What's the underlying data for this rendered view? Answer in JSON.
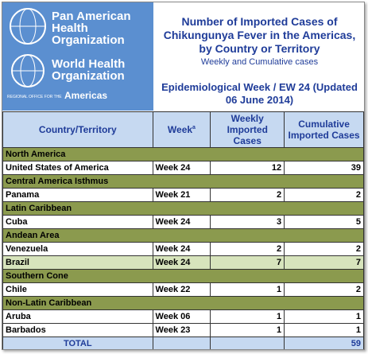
{
  "logo": {
    "paho_lines": [
      "Pan American",
      "Health",
      "Organization"
    ],
    "who_lines": [
      "World Health",
      "Organization"
    ],
    "regional_office": "REGIONAL OFFICE FOR THE",
    "region": "Americas"
  },
  "header": {
    "title": "Number of Imported  Cases of Chikungunya Fever in the Americas, by Country or Territory",
    "subtitle": "Weekly and Cumulative cases",
    "week_note": "Epidemiological Week / EW 24 (Updated 06 June 2014)"
  },
  "table": {
    "columns": [
      "Country/Territory",
      "Week",
      "Weekly Imported Cases",
      "Cumulative Imported Cases"
    ],
    "week_footnote": "a",
    "sections": [
      {
        "name": "North America",
        "rows": [
          {
            "country": "United States of America",
            "week": "Week 24",
            "weekly": 12,
            "cumulative": 39
          }
        ]
      },
      {
        "name": "Central America Isthmus",
        "rows": [
          {
            "country": "Panama",
            "week": "Week 21",
            "weekly": 2,
            "cumulative": 2
          }
        ]
      },
      {
        "name": "Latin Caribbean",
        "rows": [
          {
            "country": "Cuba",
            "week": "Week 24",
            "weekly": 3,
            "cumulative": 5
          }
        ]
      },
      {
        "name": "Andean Area",
        "rows": [
          {
            "country": "Venezuela",
            "week": "Week 24",
            "weekly": 2,
            "cumulative": 2
          },
          {
            "country": "Brazil",
            "week": "Week 24",
            "weekly": 7,
            "cumulative": 7,
            "highlight": true
          }
        ]
      },
      {
        "name": "Southern Cone",
        "rows": [
          {
            "country": "Chile",
            "week": "Week 22",
            "weekly": 1,
            "cumulative": 2
          }
        ]
      },
      {
        "name": "Non-Latin Caribbean",
        "rows": [
          {
            "country": "Aruba",
            "week": "Week 06",
            "weekly": 1,
            "cumulative": 1
          },
          {
            "country": "Barbados",
            "week": "Week 23",
            "weekly": 1,
            "cumulative": 1
          }
        ]
      }
    ],
    "total": {
      "label": "TOTAL",
      "cumulative": 59
    }
  }
}
